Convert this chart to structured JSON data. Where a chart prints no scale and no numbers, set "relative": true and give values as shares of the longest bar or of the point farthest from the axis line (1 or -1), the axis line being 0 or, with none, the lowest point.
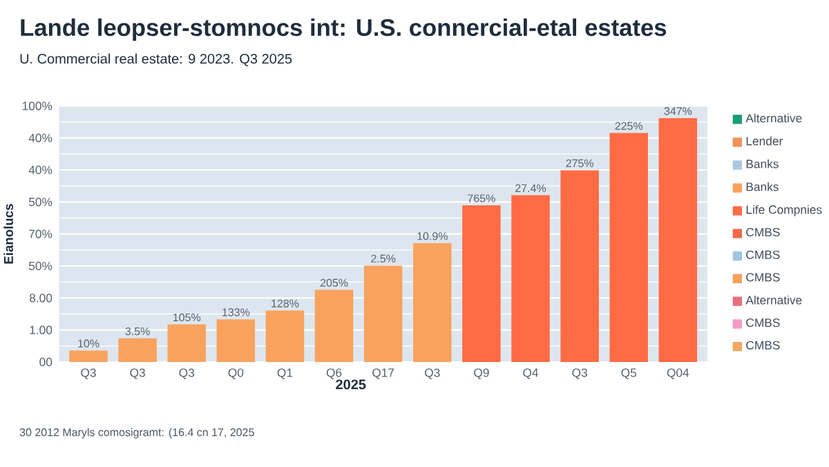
{
  "chart_data": {
    "type": "bar",
    "title": "Lande leopser-stomnocs int: U.S. connercial-etal estates",
    "subtitle": "U. Commercial real estate: 9 2023. Q3 2025",
    "xlabel": "2025",
    "ylabel": "Eianolucs",
    "relative": true,
    "categories": [
      "Q3",
      "Q3",
      "Q3",
      "Q0",
      "Q1",
      "Q6",
      "Q17",
      "Q3",
      "Q9",
      "Q4",
      "Q3",
      "Q5",
      "Q04"
    ],
    "series": [
      {
        "name": "Alternative",
        "color": "#1a9e77",
        "values": [
          null,
          null,
          null,
          null,
          null,
          null,
          null,
          null,
          null,
          null,
          null,
          null,
          null
        ]
      },
      {
        "name": "Lender",
        "color": "#f0915a",
        "values": [
          null,
          null,
          null,
          null,
          null,
          null,
          null,
          null,
          null,
          null,
          null,
          null,
          null
        ]
      },
      {
        "name": "Banks",
        "color": "#a9c8e0",
        "values": [
          null,
          null,
          null,
          null,
          null,
          null,
          null,
          null,
          null,
          null,
          null,
          null,
          null
        ]
      },
      {
        "name": "Banks",
        "color": "#f9a25e",
        "values": [
          0.047,
          0.097,
          0.154,
          0.175,
          0.211,
          0.296,
          0.395,
          0.487,
          null,
          null,
          null,
          null,
          null
        ]
      },
      {
        "name": "Life Compnies",
        "color": "#ff6b45",
        "values": [
          null,
          null,
          null,
          null,
          null,
          null,
          null,
          null,
          0.642,
          0.684,
          0.786,
          0.939,
          1
        ]
      },
      {
        "name": "CMBS",
        "color": "#ee6a4c",
        "values": [
          null,
          null,
          null,
          null,
          null,
          null,
          null,
          null,
          null,
          null,
          null,
          null,
          null
        ]
      },
      {
        "name": "CMBS",
        "color": "#9fc4e6",
        "values": [
          null,
          null,
          null,
          null,
          null,
          null,
          null,
          null,
          null,
          null,
          null,
          null,
          null
        ]
      },
      {
        "name": "CMBS",
        "color": "#f5a05a",
        "values": [
          null,
          null,
          null,
          null,
          null,
          null,
          null,
          null,
          null,
          null,
          null,
          null,
          null
        ]
      },
      {
        "name": "Alternative",
        "color": "#e8707a",
        "values": [
          null,
          null,
          null,
          null,
          null,
          null,
          null,
          null,
          null,
          null,
          null,
          null,
          null
        ]
      },
      {
        "name": "CMBS",
        "color": "#f29ac4",
        "values": [
          null,
          null,
          null,
          null,
          null,
          null,
          null,
          null,
          null,
          null,
          null,
          null,
          null
        ]
      },
      {
        "name": "CMBS",
        "color": "#f0a860",
        "values": [
          null,
          null,
          null,
          null,
          null,
          null,
          null,
          null,
          null,
          null,
          null,
          null,
          null
        ]
      }
    ],
    "grid": "y",
    "legend": "right",
    "annotations": [
      "30 2012 Maryls comosigramt: (16.4 cn 17, 2025",
      "00",
      "1.00",
      "8.00",
      "50%",
      "70%",
      "50%",
      "40%",
      "40%",
      "100%",
      "10%",
      "3.5%",
      "105%",
      "133%",
      "128%",
      "205%",
      "2.5%",
      "10.9%",
      "765%",
      "27.4%",
      "275%",
      "225%",
      "347%"
    ]
  }
}
